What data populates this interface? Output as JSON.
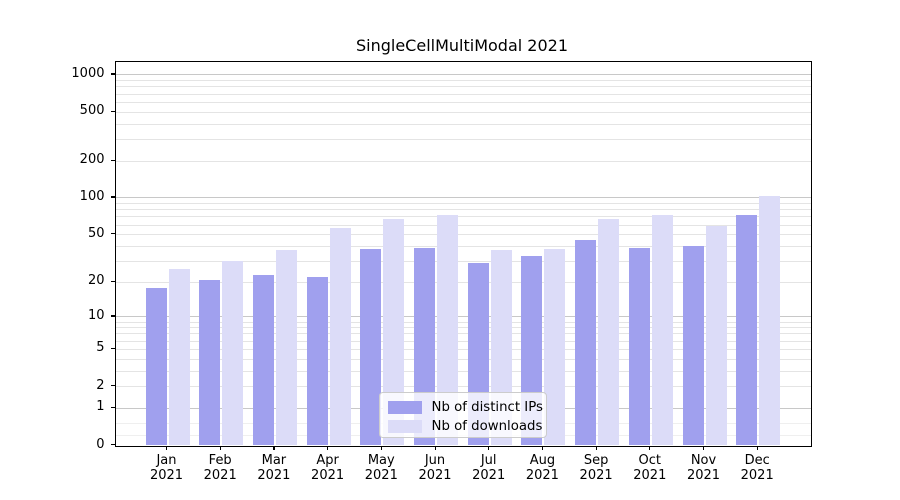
{
  "title": "SingleCellMultiModal 2021",
  "chart_data": {
    "type": "bar",
    "title": "SingleCellMultiModal 2021",
    "year": "2021",
    "months": [
      "Jan",
      "Feb",
      "Mar",
      "Apr",
      "May",
      "Jun",
      "Jul",
      "Aug",
      "Sep",
      "Oct",
      "Nov",
      "Dec"
    ],
    "categories": [
      "Jan 2021",
      "Feb 2021",
      "Mar 2021",
      "Apr 2021",
      "May 2021",
      "Jun 2021",
      "Jul 2021",
      "Aug 2021",
      "Sep 2021",
      "Oct 2021",
      "Nov 2021",
      "Dec 2021"
    ],
    "series": [
      {
        "name": "Nb of distinct IPs",
        "color": "#a0a0ee",
        "values": [
          18,
          21,
          23,
          22,
          38,
          39,
          29,
          33,
          45,
          39,
          40,
          72
        ]
      },
      {
        "name": "Nb of downloads",
        "color": "#dcdcf8",
        "values": [
          26,
          30,
          37,
          57,
          67,
          72,
          37,
          38,
          67,
          72,
          59,
          104
        ]
      }
    ],
    "y_axis": {
      "scale": "log1p",
      "ticks": [
        0,
        1,
        2,
        5,
        10,
        20,
        50,
        100,
        200,
        500,
        1000
      ],
      "ylim": [
        0,
        1270
      ]
    },
    "gridlines": {
      "major": [
        1,
        10,
        100,
        1000
      ],
      "minor": [
        2,
        3,
        4,
        5,
        6,
        7,
        8,
        9,
        20,
        30,
        40,
        50,
        60,
        70,
        80,
        90,
        200,
        300,
        400,
        500,
        600,
        700,
        800,
        900
      ],
      "sub": [
        0.2,
        0.5
      ]
    },
    "legend": {
      "position": "lower-center",
      "entries": [
        "Nb of distinct IPs",
        "Nb of downloads"
      ]
    },
    "grid": true
  }
}
